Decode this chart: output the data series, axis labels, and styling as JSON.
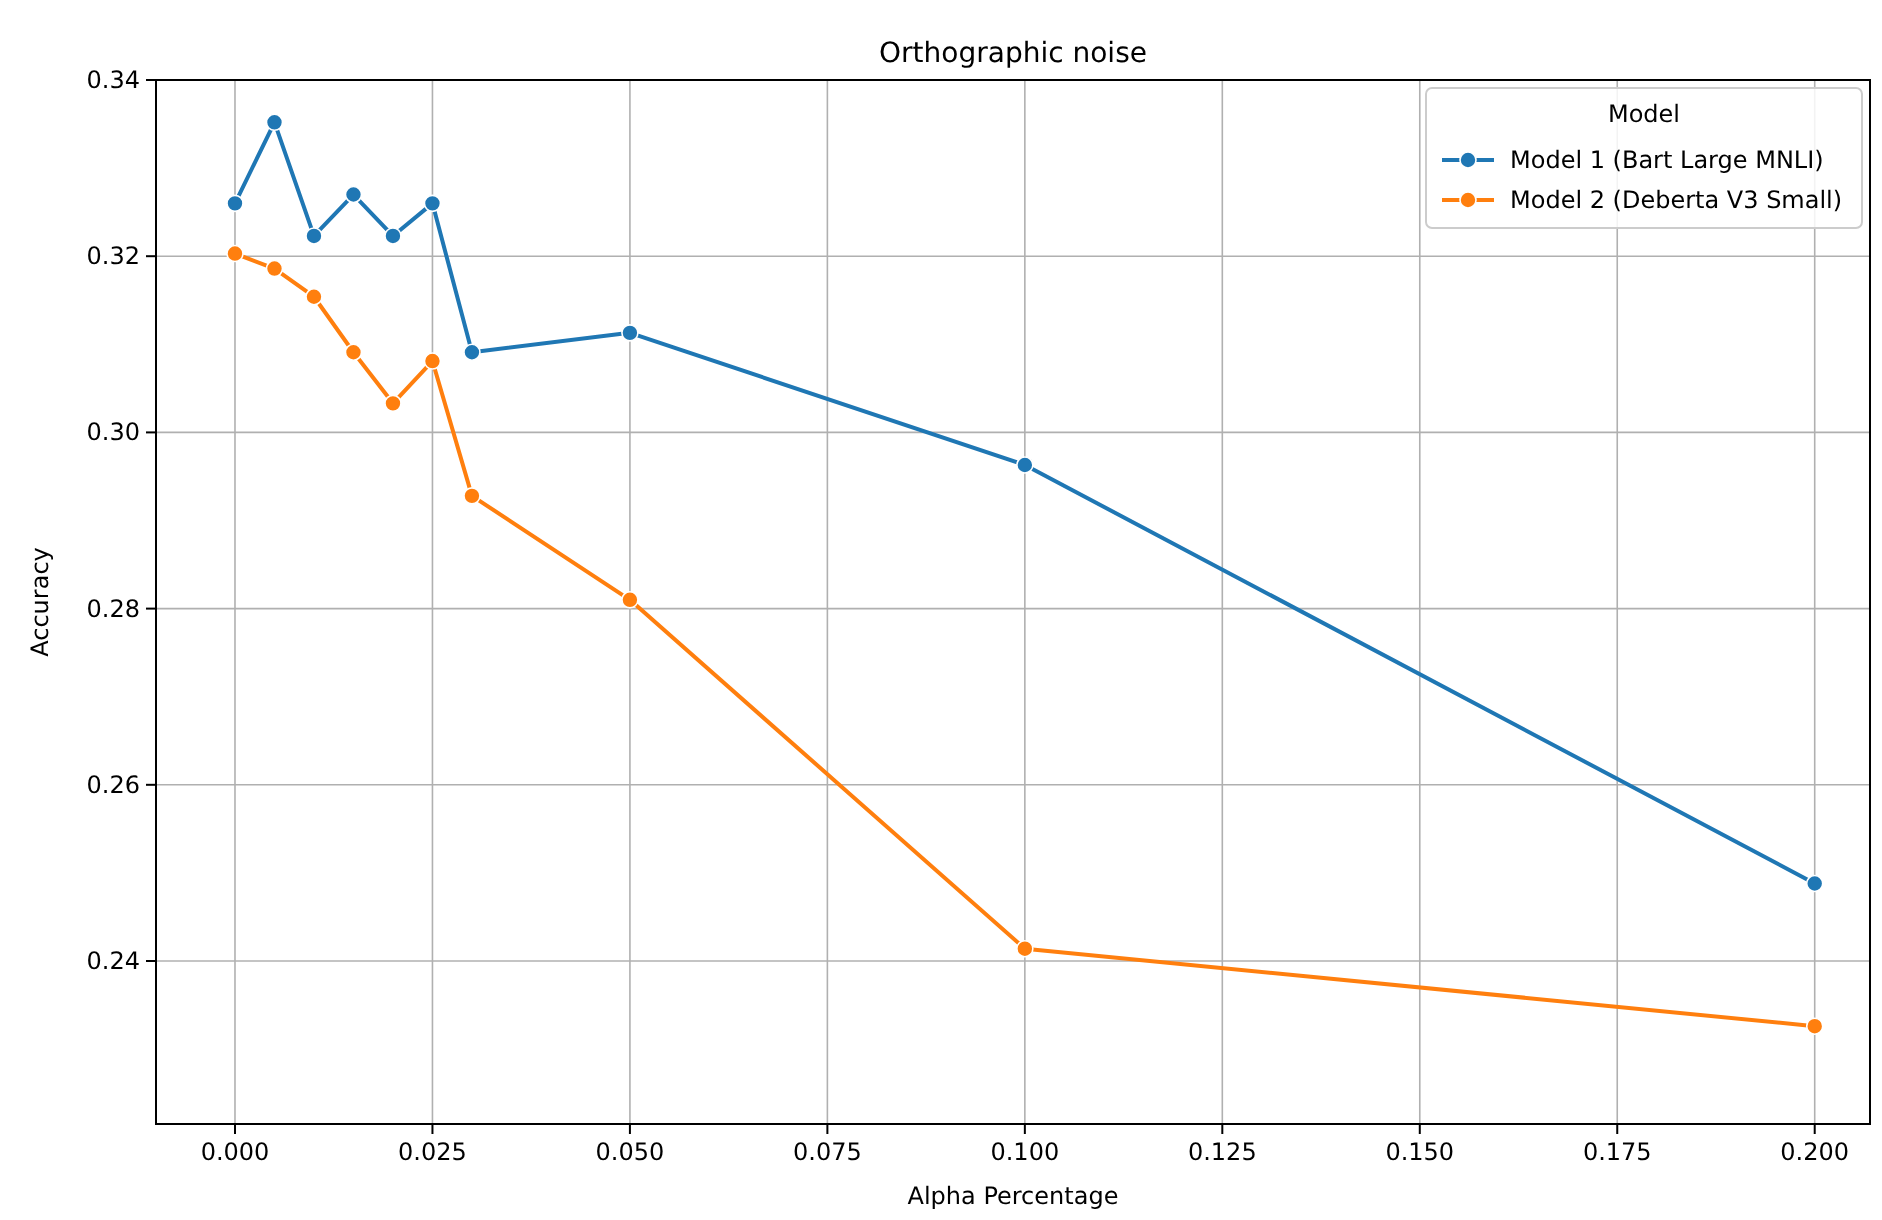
{
  "chart_data": {
    "type": "line",
    "title": "Orthographic noise",
    "xlabel": "Alpha Percentage",
    "ylabel": "Accuracy",
    "legend_title": "Model",
    "x": [
      0,
      0.005,
      0.01,
      0.015,
      0.02,
      0.025,
      0.03,
      0.05,
      0.1,
      0.2
    ],
    "series": [
      {
        "name": "Model 1 (Bart Large MNLI)",
        "color": "#1f77b4",
        "values": [
          0.326,
          0.3352,
          0.3223,
          0.327,
          0.3223,
          0.326,
          0.3091,
          0.3113,
          0.2963,
          0.2488
        ]
      },
      {
        "name": "Model 2 (Deberta V3 Small)",
        "color": "#ff7f0e",
        "values": [
          0.3203,
          0.3186,
          0.3154,
          0.3091,
          0.3033,
          0.3081,
          0.2928,
          0.281,
          0.2414,
          0.2326
        ]
      }
    ],
    "xlim": [
      -0.01,
      0.207
    ],
    "xticks": [
      {
        "value": 0,
        "label": "0.000"
      },
      {
        "value": 0.025,
        "label": "0.025"
      },
      {
        "value": 0.05,
        "label": "0.050"
      },
      {
        "value": 0.075,
        "label": "0.075"
      },
      {
        "value": 0.1,
        "label": "0.100"
      },
      {
        "value": 0.125,
        "label": "0.125"
      },
      {
        "value": 0.15,
        "label": "0.150"
      },
      {
        "value": 0.175,
        "label": "0.175"
      },
      {
        "value": 0.2,
        "label": "0.200"
      }
    ],
    "ylim": [
      0.2215,
      0.34
    ],
    "yticks": [
      {
        "value": 0.24,
        "label": "0.24"
      },
      {
        "value": 0.26,
        "label": "0.26"
      },
      {
        "value": 0.28,
        "label": "0.28"
      },
      {
        "value": 0.3,
        "label": "0.30"
      },
      {
        "value": 0.32,
        "label": "0.32"
      },
      {
        "value": 0.34,
        "label": "0.34"
      }
    ],
    "grid": true,
    "legend": "top right",
    "marker": "circle",
    "line_style": "solid"
  }
}
